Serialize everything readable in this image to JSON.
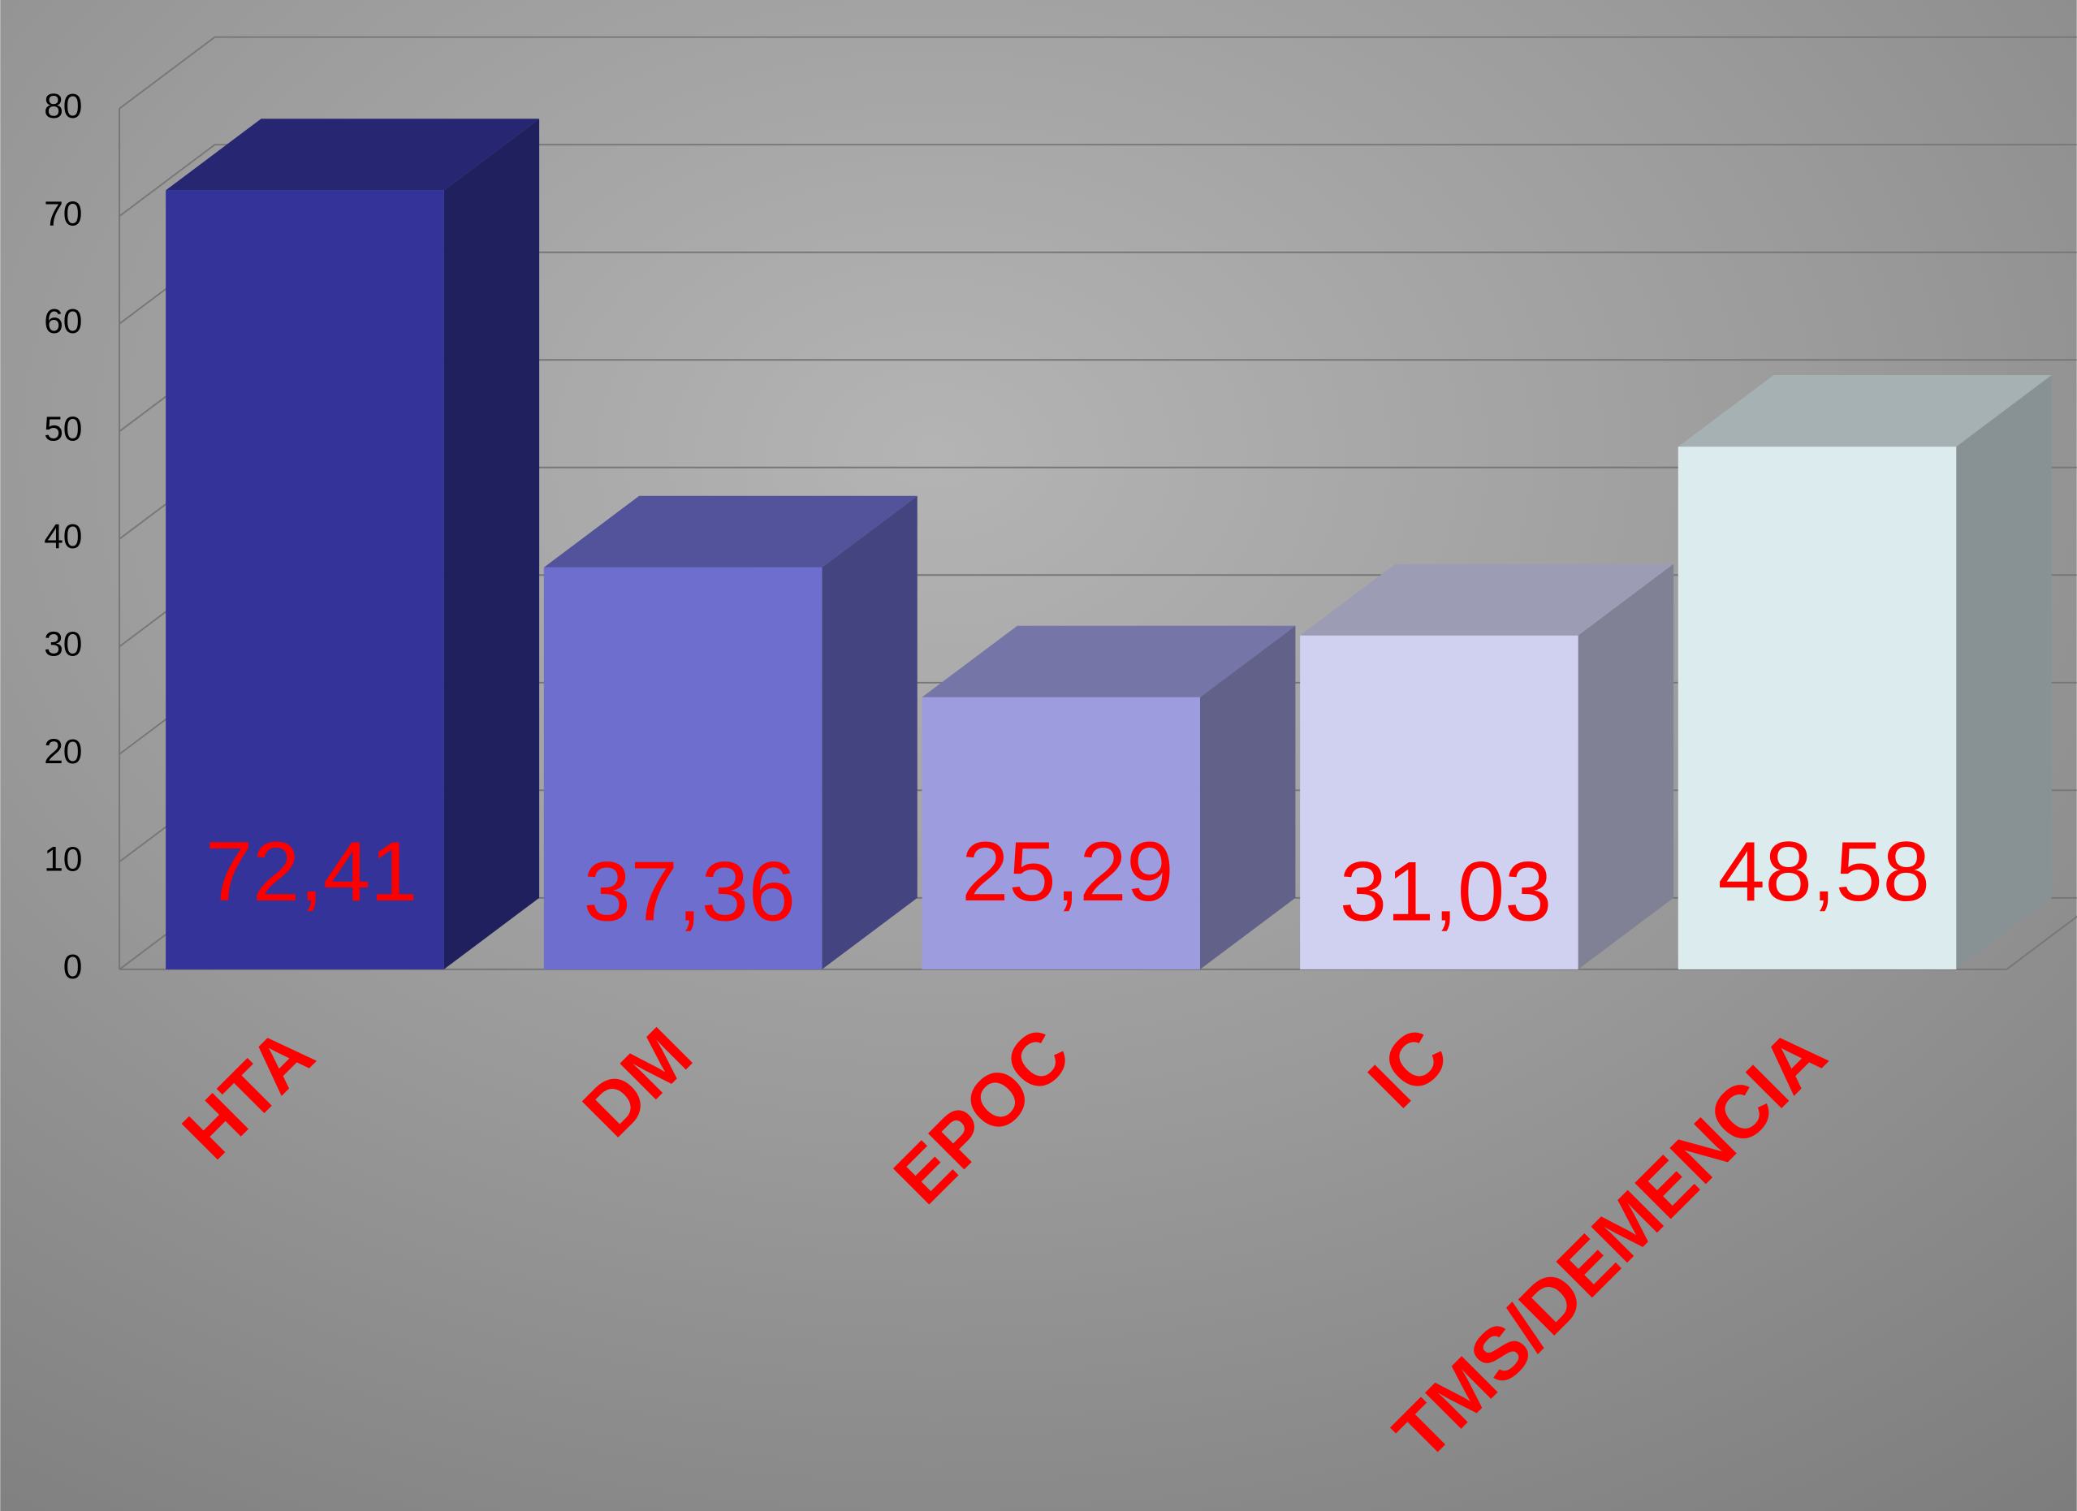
{
  "chart_data": {
    "type": "bar3d",
    "categories": [
      "HTA",
      "DM",
      "EPOC",
      "IC",
      "TMS/DEMENCIA"
    ],
    "values": [
      72.41,
      37.36,
      25.29,
      31.03,
      48.58
    ],
    "value_labels": [
      "72,41",
      "37,36",
      "25,29",
      "31,03",
      "48,58"
    ],
    "colors": [
      "#333399",
      "#6e6ecf",
      "#9c9cdf",
      "#d0d0f0",
      "#dcecee"
    ],
    "ylim": [
      0,
      80
    ],
    "yticks": [
      0,
      10,
      20,
      30,
      40,
      50,
      60,
      70,
      80
    ],
    "grid": true
  }
}
